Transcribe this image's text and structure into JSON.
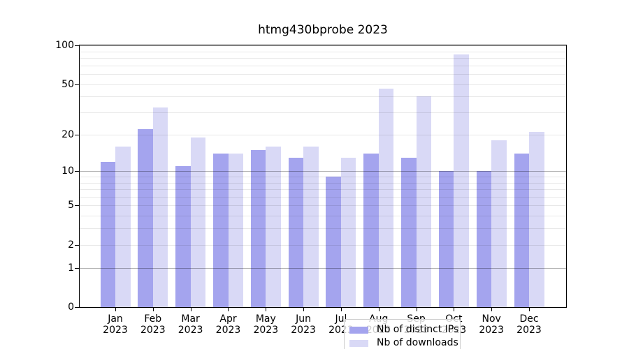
{
  "chart_data": {
    "type": "bar",
    "title": "htmg430bprobe 2023",
    "categories": [
      "Jan 2023",
      "Feb 2023",
      "Mar 2023",
      "Apr 2023",
      "May 2023",
      "Jun 2023",
      "Jul 2023",
      "Aug 2023",
      "Sep 2023",
      "Oct 2023",
      "Nov 2023",
      "Dec 2023"
    ],
    "series": [
      {
        "name": "Nb of distinct IPs",
        "color": "#a4a4ee",
        "values": [
          12,
          22,
          11,
          14,
          15,
          13,
          9,
          14,
          13,
          10,
          10,
          14
        ]
      },
      {
        "name": "Nb of downloads",
        "color": "#d9d9f6",
        "values": [
          16,
          33,
          19,
          14,
          16,
          16,
          13,
          46,
          40,
          85,
          18,
          21
        ]
      }
    ],
    "xlabel": "",
    "ylabel": "",
    "yscale": "log1p",
    "ylim": [
      0,
      100
    ],
    "ytick_labels": [
      "100",
      "50",
      "20",
      "10",
      "5",
      "2",
      "1",
      "0"
    ],
    "yticks_labeled": [
      100,
      50,
      20,
      10,
      5,
      2,
      1,
      0
    ],
    "yticks_major_grid": [
      1,
      10,
      100
    ],
    "yticks_minor_grid": [
      2,
      3,
      4,
      5,
      6,
      7,
      8,
      9,
      20,
      30,
      40,
      50,
      60,
      70,
      80,
      90
    ],
    "grid": true,
    "legend_position": "inside bottom-center"
  }
}
